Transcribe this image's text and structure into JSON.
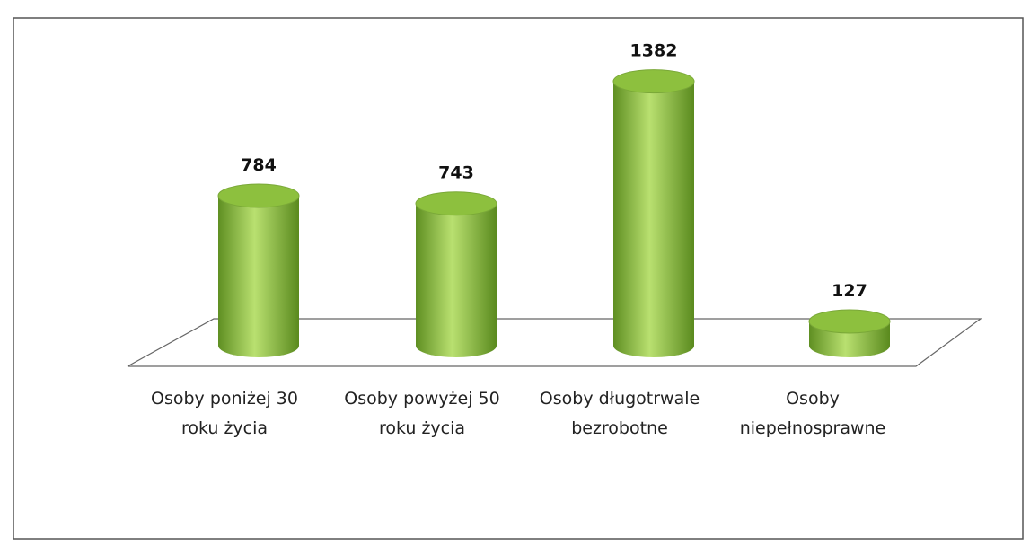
{
  "chart_data": {
    "type": "cylinder-bar",
    "categories": [
      "Osoby poniżej 30 roku życia",
      "Osoby powyżej 50 roku życia",
      "Osoby długotrwale bezrobotne",
      "Osoby niepełnosprawne"
    ],
    "values": [
      784,
      743,
      1382,
      127
    ],
    "color": "#8dc03e"
  }
}
